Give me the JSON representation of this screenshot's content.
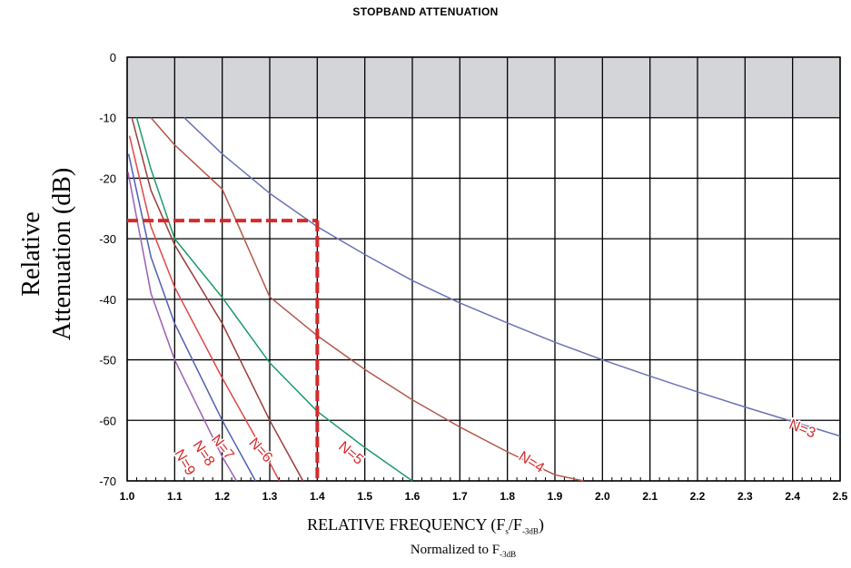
{
  "chart_data": {
    "type": "line",
    "title": "STOPBAND ATTENUATION",
    "ylabel": "Relative Attenuation (dB)",
    "xlabel": {
      "prefix": "RELATIVE FREQUENCY (F",
      "sub1": "s",
      "mid": "/F",
      "sub2": "-3dB",
      "suffix": ")"
    },
    "note": {
      "prefix": "Normalized to F",
      "sub": "-3dB"
    },
    "xlim": [
      1.0,
      2.5
    ],
    "ylim": [
      -70,
      0
    ],
    "x_ticks": [
      "1.0",
      "1.1",
      "1.2",
      "1.3",
      "1.4",
      "1.5",
      "1.6",
      "1.7",
      "1.8",
      "1.9",
      "2.0",
      "2.1",
      "2.2",
      "2.3",
      "2.4",
      "2.5"
    ],
    "y_ticks": [
      "0",
      "-10",
      "-20",
      "-30",
      "-40",
      "-50",
      "-60",
      "-70"
    ],
    "grid": true,
    "shaded_region": {
      "y_from": -10,
      "y_to": 0,
      "color": "#d4d5d8"
    },
    "series": [
      {
        "name": "N=3",
        "color": "#6873b5",
        "x": [
          1.12,
          1.2,
          1.3,
          1.4,
          1.5,
          1.6,
          1.7,
          1.8,
          1.9,
          2.0,
          2.1,
          2.2,
          2.3,
          2.4,
          2.5
        ],
        "y": [
          -10,
          -16,
          -22.5,
          -28,
          -32.6,
          -36.9,
          -40.6,
          -43.9,
          -47.1,
          -50,
          -52.7,
          -55.3,
          -57.8,
          -60.2,
          -62.6
        ]
      },
      {
        "name": "N=4",
        "color": "#b1584a",
        "x": [
          1.05,
          1.1,
          1.2,
          1.3,
          1.4,
          1.5,
          1.6,
          1.7,
          1.8,
          1.9,
          1.96
        ],
        "y": [
          -10,
          -14.5,
          -21.8,
          -39.6,
          -46,
          -51.6,
          -56.6,
          -61.1,
          -65.2,
          -69,
          -70
        ],
        "_note": "values read from curve"
      },
      {
        "name": "N=5",
        "color": "#1e9a6a",
        "x": [
          1.02,
          1.05,
          1.1,
          1.2,
          1.3,
          1.4,
          1.5,
          1.6
        ],
        "y": [
          -10,
          -18.5,
          -30,
          -39.7,
          -50.5,
          -58.5,
          -64.5,
          -70
        ]
      },
      {
        "name": "N=6",
        "color": "#9b3b3b",
        "x": [
          1.01,
          1.05,
          1.1,
          1.2,
          1.3,
          1.37
        ],
        "y": [
          -10,
          -22,
          -31,
          -44,
          -60,
          -70
        ]
      },
      {
        "name": "N=7",
        "color": "#e04848",
        "x": [
          1.005,
          1.05,
          1.1,
          1.2,
          1.3,
          1.32
        ],
        "y": [
          -13,
          -28,
          -38,
          -53,
          -67,
          -70
        ]
      },
      {
        "name": "N=8",
        "color": "#4f5fb5",
        "x": [
          1.003,
          1.05,
          1.1,
          1.2,
          1.27
        ],
        "y": [
          -16,
          -33,
          -44,
          -60,
          -70
        ]
      },
      {
        "name": "N=9",
        "color": "#9b5fb5",
        "x": [
          1.002,
          1.05,
          1.1,
          1.2,
          1.23
        ],
        "y": [
          -19,
          -39,
          -50,
          -66,
          -70
        ]
      }
    ],
    "curve_labels": [
      {
        "text": "N=3",
        "x": 2.42,
        "y": -61.5,
        "rot": 22
      },
      {
        "text": "N=4",
        "x": 1.85,
        "y": -67,
        "rot": 32
      },
      {
        "text": "N=5",
        "x": 1.47,
        "y": -65.5,
        "rot": 40
      },
      {
        "text": "N=6",
        "x": 1.28,
        "y": -65,
        "rot": 48
      },
      {
        "text": "N=7",
        "x": 1.2,
        "y": -64.5,
        "rot": 52
      },
      {
        "text": "N=8",
        "x": 1.16,
        "y": -65.5,
        "rot": 56
      },
      {
        "text": "N=9",
        "x": 1.12,
        "y": -67,
        "rot": 60
      }
    ],
    "annotation": {
      "type": "dashed_marker",
      "x": 1.4,
      "y": -27,
      "color": "#d62a2a"
    }
  }
}
